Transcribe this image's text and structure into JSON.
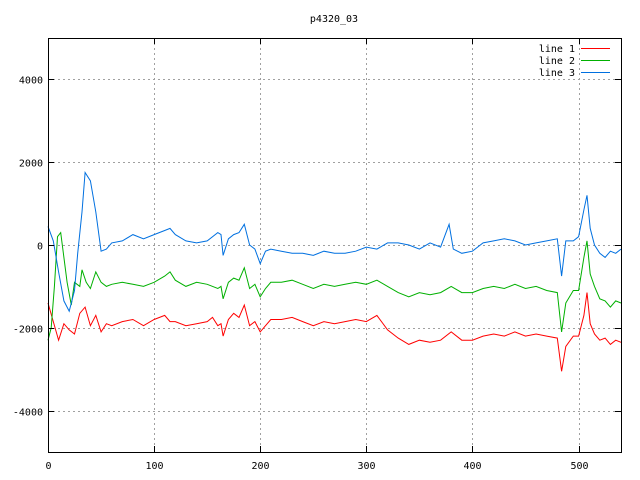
{
  "chart_data": {
    "type": "line",
    "title": "p4320_03",
    "xlim": [
      0,
      540
    ],
    "ylim": [
      -5000,
      5000
    ],
    "x_ticks": [
      0,
      100,
      200,
      300,
      400,
      500
    ],
    "y_ticks": [
      -4000,
      -2000,
      0,
      2000,
      4000
    ],
    "grid": true,
    "legend_position": "top-right",
    "series": [
      {
        "name": "line 1",
        "color": "#ff0000",
        "points": [
          [
            0,
            -1400
          ],
          [
            5,
            -1850
          ],
          [
            10,
            -2300
          ],
          [
            15,
            -1900
          ],
          [
            20,
            -2050
          ],
          [
            25,
            -2150
          ],
          [
            30,
            -1650
          ],
          [
            35,
            -1500
          ],
          [
            40,
            -1950
          ],
          [
            45,
            -1700
          ],
          [
            50,
            -2100
          ],
          [
            55,
            -1900
          ],
          [
            60,
            -1950
          ],
          [
            70,
            -1850
          ],
          [
            80,
            -1800
          ],
          [
            90,
            -1950
          ],
          [
            100,
            -1800
          ],
          [
            110,
            -1700
          ],
          [
            115,
            -1850
          ],
          [
            120,
            -1850
          ],
          [
            130,
            -1950
          ],
          [
            140,
            -1900
          ],
          [
            150,
            -1850
          ],
          [
            155,
            -1750
          ],
          [
            160,
            -1950
          ],
          [
            163,
            -1900
          ],
          [
            165,
            -2200
          ],
          [
            170,
            -1800
          ],
          [
            175,
            -1650
          ],
          [
            180,
            -1750
          ],
          [
            185,
            -1450
          ],
          [
            190,
            -1950
          ],
          [
            195,
            -1850
          ],
          [
            200,
            -2100
          ],
          [
            205,
            -1950
          ],
          [
            210,
            -1800
          ],
          [
            220,
            -1800
          ],
          [
            230,
            -1750
          ],
          [
            240,
            -1850
          ],
          [
            250,
            -1950
          ],
          [
            260,
            -1850
          ],
          [
            270,
            -1900
          ],
          [
            280,
            -1850
          ],
          [
            290,
            -1800
          ],
          [
            300,
            -1850
          ],
          [
            310,
            -1700
          ],
          [
            320,
            -2050
          ],
          [
            330,
            -2250
          ],
          [
            340,
            -2400
          ],
          [
            350,
            -2300
          ],
          [
            360,
            -2350
          ],
          [
            370,
            -2300
          ],
          [
            380,
            -2100
          ],
          [
            390,
            -2300
          ],
          [
            400,
            -2300
          ],
          [
            410,
            -2200
          ],
          [
            420,
            -2150
          ],
          [
            430,
            -2200
          ],
          [
            440,
            -2100
          ],
          [
            450,
            -2200
          ],
          [
            460,
            -2150
          ],
          [
            470,
            -2200
          ],
          [
            480,
            -2250
          ],
          [
            484,
            -3050
          ],
          [
            488,
            -2450
          ],
          [
            495,
            -2200
          ],
          [
            500,
            -2200
          ],
          [
            505,
            -1700
          ],
          [
            508,
            -1150
          ],
          [
            511,
            -1900
          ],
          [
            515,
            -2150
          ],
          [
            520,
            -2300
          ],
          [
            525,
            -2250
          ],
          [
            530,
            -2400
          ],
          [
            535,
            -2300
          ],
          [
            540,
            -2350
          ]
        ]
      },
      {
        "name": "line 2",
        "color": "#00b000",
        "points": [
          [
            0,
            -2300
          ],
          [
            3,
            -2000
          ],
          [
            6,
            -1000
          ],
          [
            9,
            200
          ],
          [
            12,
            300
          ],
          [
            15,
            -300
          ],
          [
            18,
            -900
          ],
          [
            22,
            -1450
          ],
          [
            25,
            -900
          ],
          [
            30,
            -1000
          ],
          [
            32,
            -600
          ],
          [
            36,
            -900
          ],
          [
            40,
            -1050
          ],
          [
            45,
            -650
          ],
          [
            50,
            -900
          ],
          [
            55,
            -1000
          ],
          [
            60,
            -950
          ],
          [
            70,
            -900
          ],
          [
            80,
            -950
          ],
          [
            90,
            -1000
          ],
          [
            100,
            -900
          ],
          [
            110,
            -750
          ],
          [
            115,
            -650
          ],
          [
            120,
            -850
          ],
          [
            130,
            -1000
          ],
          [
            140,
            -900
          ],
          [
            150,
            -950
          ],
          [
            160,
            -1050
          ],
          [
            163,
            -1000
          ],
          [
            165,
            -1300
          ],
          [
            170,
            -900
          ],
          [
            175,
            -800
          ],
          [
            180,
            -850
          ],
          [
            185,
            -550
          ],
          [
            190,
            -1050
          ],
          [
            195,
            -950
          ],
          [
            200,
            -1250
          ],
          [
            205,
            -1050
          ],
          [
            210,
            -900
          ],
          [
            220,
            -900
          ],
          [
            230,
            -850
          ],
          [
            240,
            -950
          ],
          [
            250,
            -1050
          ],
          [
            260,
            -950
          ],
          [
            270,
            -1000
          ],
          [
            280,
            -950
          ],
          [
            290,
            -900
          ],
          [
            300,
            -950
          ],
          [
            310,
            -850
          ],
          [
            320,
            -1000
          ],
          [
            330,
            -1150
          ],
          [
            340,
            -1250
          ],
          [
            350,
            -1150
          ],
          [
            360,
            -1200
          ],
          [
            370,
            -1150
          ],
          [
            380,
            -1000
          ],
          [
            390,
            -1150
          ],
          [
            400,
            -1150
          ],
          [
            410,
            -1050
          ],
          [
            420,
            -1000
          ],
          [
            430,
            -1050
          ],
          [
            440,
            -950
          ],
          [
            450,
            -1050
          ],
          [
            460,
            -1000
          ],
          [
            470,
            -1100
          ],
          [
            480,
            -1150
          ],
          [
            484,
            -2100
          ],
          [
            488,
            -1400
          ],
          [
            495,
            -1100
          ],
          [
            500,
            -1100
          ],
          [
            505,
            -300
          ],
          [
            508,
            100
          ],
          [
            511,
            -700
          ],
          [
            515,
            -1000
          ],
          [
            520,
            -1300
          ],
          [
            525,
            -1350
          ],
          [
            530,
            -1500
          ],
          [
            535,
            -1350
          ],
          [
            540,
            -1400
          ]
        ]
      },
      {
        "name": "line 3",
        "color": "#0070e0",
        "points": [
          [
            0,
            450
          ],
          [
            5,
            100
          ],
          [
            10,
            -650
          ],
          [
            15,
            -1350
          ],
          [
            20,
            -1600
          ],
          [
            25,
            -1100
          ],
          [
            28,
            -200
          ],
          [
            32,
            800
          ],
          [
            35,
            1750
          ],
          [
            40,
            1550
          ],
          [
            45,
            800
          ],
          [
            50,
            -150
          ],
          [
            55,
            -100
          ],
          [
            60,
            50
          ],
          [
            70,
            100
          ],
          [
            80,
            250
          ],
          [
            90,
            150
          ],
          [
            100,
            250
          ],
          [
            110,
            350
          ],
          [
            115,
            400
          ],
          [
            120,
            250
          ],
          [
            130,
            100
          ],
          [
            140,
            50
          ],
          [
            150,
            100
          ],
          [
            160,
            300
          ],
          [
            163,
            250
          ],
          [
            165,
            -250
          ],
          [
            170,
            150
          ],
          [
            175,
            250
          ],
          [
            180,
            300
          ],
          [
            185,
            500
          ],
          [
            190,
            0
          ],
          [
            195,
            -100
          ],
          [
            200,
            -450
          ],
          [
            205,
            -150
          ],
          [
            210,
            -100
          ],
          [
            220,
            -150
          ],
          [
            230,
            -200
          ],
          [
            240,
            -200
          ],
          [
            250,
            -250
          ],
          [
            260,
            -150
          ],
          [
            270,
            -200
          ],
          [
            280,
            -200
          ],
          [
            290,
            -150
          ],
          [
            300,
            -50
          ],
          [
            310,
            -100
          ],
          [
            320,
            50
          ],
          [
            330,
            50
          ],
          [
            340,
            0
          ],
          [
            350,
            -100
          ],
          [
            360,
            50
          ],
          [
            370,
            -50
          ],
          [
            378,
            500
          ],
          [
            382,
            -100
          ],
          [
            390,
            -200
          ],
          [
            400,
            -150
          ],
          [
            410,
            50
          ],
          [
            420,
            100
          ],
          [
            430,
            150
          ],
          [
            440,
            100
          ],
          [
            450,
            0
          ],
          [
            460,
            50
          ],
          [
            470,
            100
          ],
          [
            480,
            150
          ],
          [
            484,
            -750
          ],
          [
            488,
            100
          ],
          [
            495,
            100
          ],
          [
            500,
            200
          ],
          [
            505,
            850
          ],
          [
            508,
            1200
          ],
          [
            511,
            400
          ],
          [
            515,
            0
          ],
          [
            520,
            -200
          ],
          [
            525,
            -300
          ],
          [
            530,
            -150
          ],
          [
            535,
            -200
          ],
          [
            540,
            -100
          ]
        ]
      }
    ]
  }
}
